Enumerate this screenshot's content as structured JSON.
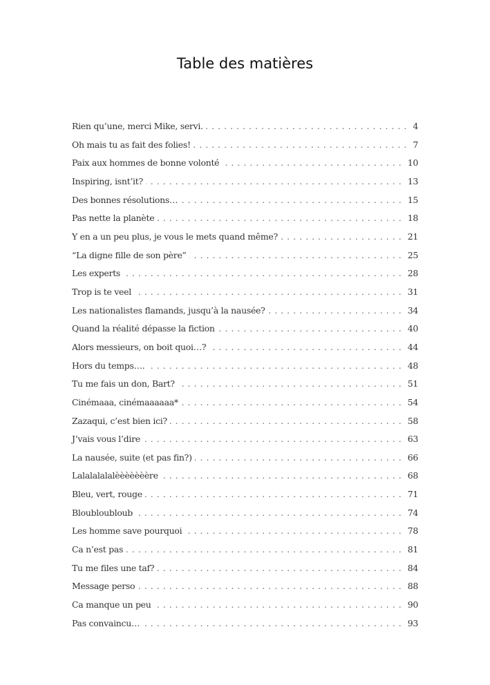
{
  "title": "Table des matières",
  "entries": [
    {
      "title": "Rien qu’une, merci Mike, servi.",
      "page": "4"
    },
    {
      "title": "Oh mais tu as fait des folies!",
      "page": "7"
    },
    {
      "title": "Paix aux hommes de bonne volonté",
      "page": "10"
    },
    {
      "title": "Inspiring, isnt’it?",
      "page": "13"
    },
    {
      "title": "Des bonnes résolutions…",
      "page": "15"
    },
    {
      "title": "Pas nette la planète",
      "page": "18"
    },
    {
      "title": "Y en a un peu plus, je vous le mets quand même?",
      "page": "21"
    },
    {
      "title": "“La digne fille de son père”",
      "page": "25"
    },
    {
      "title": "Les experts",
      "page": "28"
    },
    {
      "title": "Trop is te veel",
      "page": "31"
    },
    {
      "title": "Les nationalistes flamands, jusqu’à la nausée?",
      "page": "34"
    },
    {
      "title": "Quand la réalité dépasse la fiction",
      "page": "40"
    },
    {
      "title": "Alors messieurs, on boit quoi…?",
      "page": "44"
    },
    {
      "title": "Hors du temps….",
      "page": "48"
    },
    {
      "title": "Tu me fais un don, Bart?",
      "page": "51"
    },
    {
      "title": "Cinémaaa, cinémaaaaaa*",
      "page": "54"
    },
    {
      "title": "Zazaqui, c’est bien ici?",
      "page": "58"
    },
    {
      "title": "J’vais vous l’dire",
      "page": "63"
    },
    {
      "title": "La nausée, suite (et pas fin?)",
      "page": "66"
    },
    {
      "title": "Lalalalalalèèèèèèère",
      "page": "68"
    },
    {
      "title": "Bleu, vert, rouge",
      "page": "71"
    },
    {
      "title": "Bloubloubloub",
      "page": "74"
    },
    {
      "title": "Les homme save pourquoi",
      "page": "78"
    },
    {
      "title": "Ca n’est pas",
      "page": "81"
    },
    {
      "title": "Tu me files une taf?",
      "page": "84"
    },
    {
      "title": "Message perso",
      "page": "88"
    },
    {
      "title": "Ca manque un peu",
      "page": "90"
    },
    {
      "title": "Pas convaincu…",
      "page": "93"
    }
  ]
}
